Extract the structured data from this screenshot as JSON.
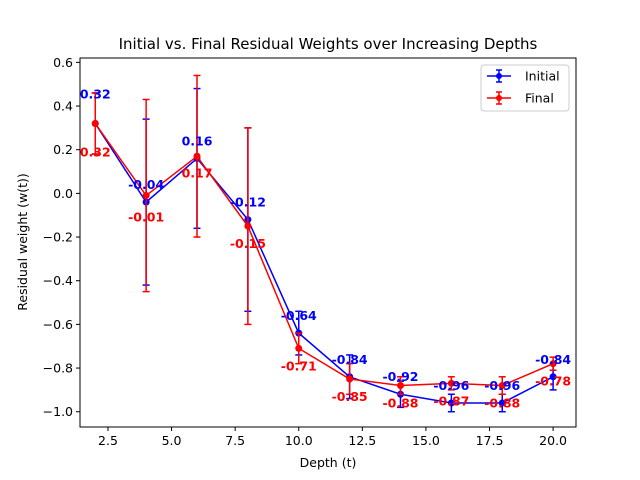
{
  "chart_data": {
    "type": "line",
    "title": "Initial vs. Final Residual Weights over Increasing Depths",
    "xlabel": "Depth (t)",
    "ylabel": "Residual weight (w(t))",
    "xlim": [
      1.4,
      20.9
    ],
    "ylim": [
      -1.07,
      0.62
    ],
    "xticks": [
      2.5,
      5.0,
      7.5,
      10.0,
      12.5,
      15.0,
      17.5,
      20.0
    ],
    "xtick_labels": [
      "2.5",
      "5.0",
      "7.5",
      "10.0",
      "12.5",
      "15.0",
      "17.5",
      "20.0"
    ],
    "yticks": [
      -1.0,
      -0.8,
      -0.6,
      -0.4,
      -0.2,
      0.0,
      0.2,
      0.4,
      0.6
    ],
    "ytick_labels": [
      "−1.0",
      "−0.8",
      "−0.6",
      "−0.4",
      "−0.2",
      "0.0",
      "0.2",
      "0.4",
      "0.6"
    ],
    "grid": false,
    "legend_position": "top-right",
    "x": [
      2,
      4,
      6,
      8,
      10,
      12,
      14,
      16,
      18,
      20
    ],
    "series": [
      {
        "name": "Initial",
        "color": "#0000ff",
        "values": [
          0.32,
          -0.04,
          0.16,
          -0.12,
          -0.64,
          -0.84,
          -0.92,
          -0.96,
          -0.96,
          -0.84
        ],
        "errors": [
          0.14,
          0.38,
          0.32,
          0.42,
          0.1,
          0.1,
          0.06,
          0.04,
          0.04,
          0.06
        ],
        "labels": [
          "0.32",
          "-0.04",
          "0.16",
          "-0.12",
          "-0.64",
          "-0.84",
          "-0.92",
          "-0.96",
          "-0.96",
          "-0.84"
        ]
      },
      {
        "name": "Final",
        "color": "#ff0000",
        "values": [
          0.32,
          -0.01,
          0.17,
          -0.15,
          -0.71,
          -0.85,
          -0.88,
          -0.87,
          -0.88,
          -0.78
        ],
        "errors": [
          0.14,
          0.44,
          0.37,
          0.45,
          0.07,
          0.07,
          0.04,
          0.03,
          0.04,
          0.03
        ],
        "labels": [
          "0.32",
          "-0.01",
          "0.17",
          "-0.15",
          "-0.71",
          "-0.85",
          "-0.88",
          "-0.87",
          "-0.88",
          "-0.78"
        ]
      }
    ]
  }
}
